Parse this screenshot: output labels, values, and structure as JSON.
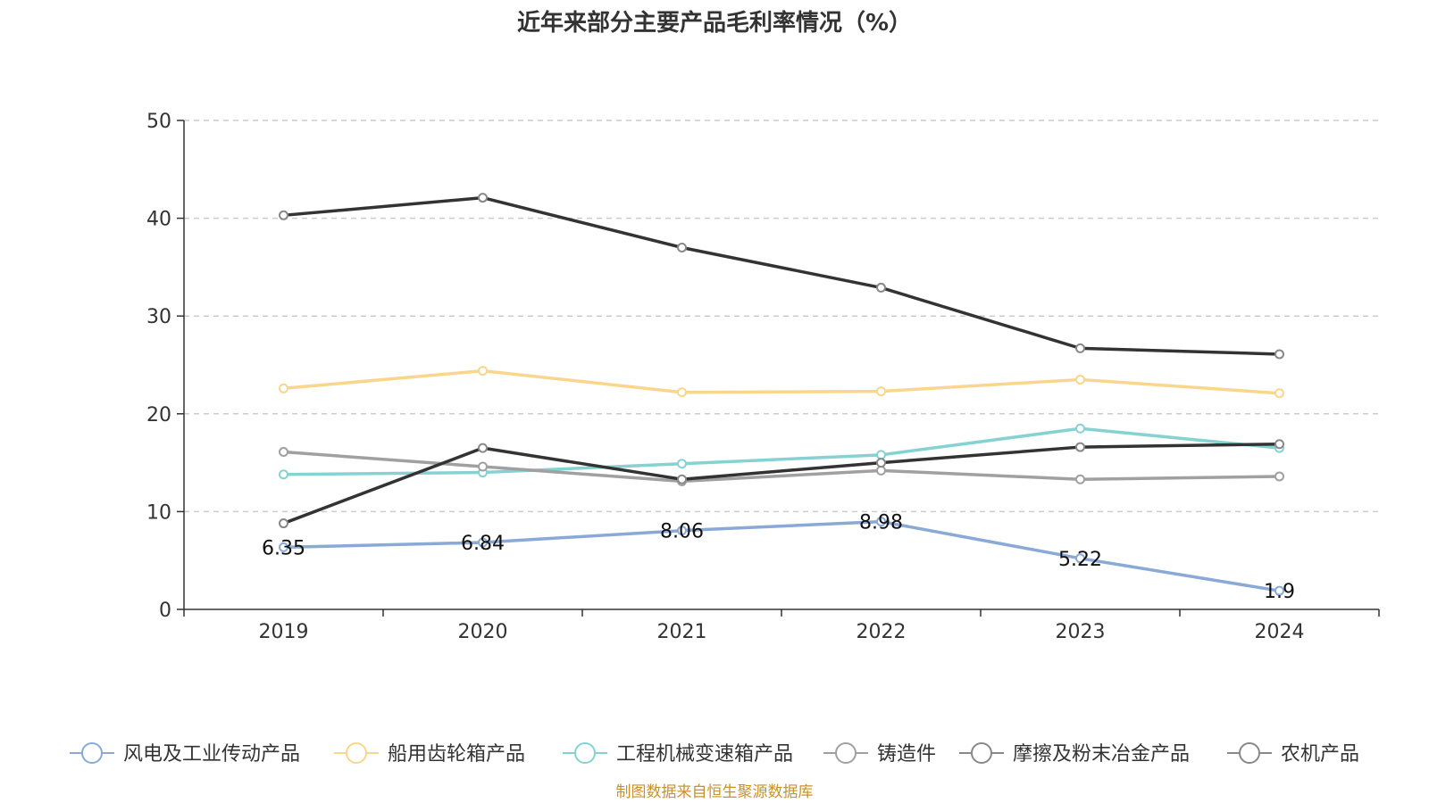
{
  "chart_data": {
    "type": "line",
    "title": "近年来部分主要产品毛利率情况（%）",
    "x": [
      "2019",
      "2020",
      "2021",
      "2022",
      "2023",
      "2024"
    ],
    "ylim": [
      0,
      50
    ],
    "yticks": [
      0,
      10,
      20,
      30,
      40,
      50
    ],
    "grid": true,
    "legend_position": "bottom",
    "series": [
      {
        "name": "风电及工业传动产品",
        "color": "#8aa9d6",
        "values": [
          6.35,
          6.84,
          8.06,
          8.98,
          5.22,
          1.9
        ],
        "labels": [
          "6.35",
          "6.84",
          "8.06",
          "8.98",
          "5.22",
          "1.9"
        ]
      },
      {
        "name": "船用齿轮箱产品",
        "color": "#fad68c",
        "values": [
          22.6,
          24.4,
          22.2,
          22.3,
          23.5,
          22.1
        ]
      },
      {
        "name": "工程机械变速箱产品",
        "color": "#86d2d3",
        "values": [
          13.8,
          14.0,
          14.9,
          15.8,
          18.5,
          16.5
        ]
      },
      {
        "name": "铸造件",
        "color": "#a0a0a0",
        "values": [
          16.1,
          14.6,
          13.1,
          14.2,
          13.3,
          13.6
        ]
      },
      {
        "name": "摩擦及粉末冶金产品",
        "color": "#333333",
        "values": [
          40.3,
          42.1,
          37.0,
          32.9,
          26.7,
          26.1
        ]
      },
      {
        "name": "农机产品",
        "color": "#333333",
        "values": [
          8.8,
          16.5,
          13.3,
          15.0,
          16.6,
          16.9
        ]
      }
    ],
    "source": "制图数据来自恒生聚源数据库"
  }
}
